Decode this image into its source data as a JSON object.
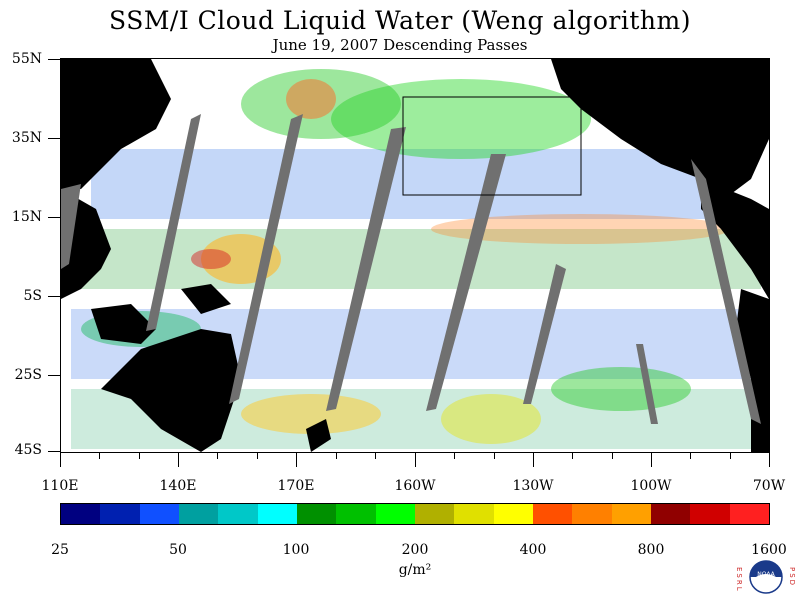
{
  "title": "SSM/I Cloud Liquid Water (Weng algorithm)",
  "subtitle": "June 19, 2007  Descending Passes",
  "y_labels": [
    "55N",
    "35N",
    "15N",
    "5S",
    "25S",
    "45S"
  ],
  "x_labels": [
    "110E",
    "140E",
    "170E",
    "160W",
    "130W",
    "100W",
    "70W"
  ],
  "colorbar": {
    "colors": [
      "#000080",
      "#0020b0",
      "#1050ff",
      "#00a0a0",
      "#00c8c8",
      "#00ffff",
      "#009000",
      "#00c000",
      "#00ff00",
      "#b0b000",
      "#e0e000",
      "#ffff00",
      "#ff5000",
      "#ff8000",
      "#ffa000",
      "#900000",
      "#d00000",
      "#ff2020"
    ],
    "tick_labels": [
      "25",
      "50",
      "100",
      "200",
      "400",
      "800",
      "1600"
    ]
  },
  "units": "g/m²",
  "logo": {
    "letters_left": "ESRL",
    "letters_right": "PSD",
    "center": "NOAA"
  }
}
